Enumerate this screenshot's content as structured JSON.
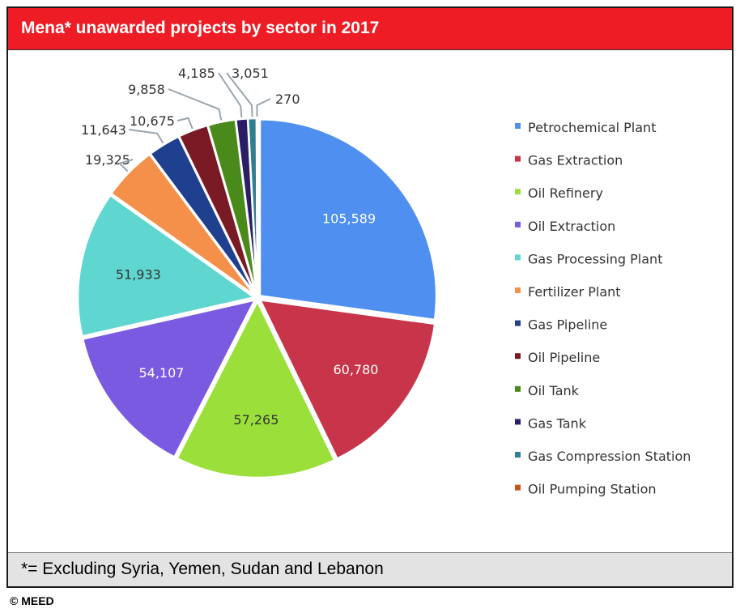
{
  "title": "Mena* unawarded projects by sector in 2017",
  "footnote": "*= Excluding Syria, Yemen, Sudan and Lebanon",
  "credit": "© MEED",
  "chart_data": {
    "type": "pie",
    "title": "Mena* unawarded projects by sector in 2017",
    "legend_position": "right",
    "slices": [
      {
        "label": "Petrochemical Plant",
        "value": 105589,
        "display": "105,589",
        "color": "#4e8ff0"
      },
      {
        "label": "Gas Extraction",
        "value": 60780,
        "display": "60,780",
        "color": "#c8354a"
      },
      {
        "label": "Oil Refinery",
        "value": 57265,
        "display": "57,265",
        "color": "#9be03a"
      },
      {
        "label": "Oil Extraction",
        "value": 54107,
        "display": "54,107",
        "color": "#7a5ae0"
      },
      {
        "label": "Gas Processing Plant",
        "value": 51933,
        "display": "51,933",
        "color": "#5fd6cf"
      },
      {
        "label": "Fertilizer Plant",
        "value": 19325,
        "display": "19,325",
        "color": "#f5904a"
      },
      {
        "label": "Gas Pipeline",
        "value": 11643,
        "display": "11,643",
        "color": "#1f3f8f"
      },
      {
        "label": "Oil Pipeline",
        "value": 10675,
        "display": "10,675",
        "color": "#7a1a24"
      },
      {
        "label": "Oil Tank",
        "value": 9858,
        "display": "9,858",
        "color": "#4a8a1a"
      },
      {
        "label": "Gas Tank",
        "value": 4185,
        "display": "4,185",
        "color": "#2a1f66"
      },
      {
        "label": "Gas Compression Station",
        "value": 3051,
        "display": "3,051",
        "color": "#2e7f8f"
      },
      {
        "label": "Oil Pumping Station",
        "value": 270,
        "display": "270",
        "color": "#c8541a"
      }
    ]
  }
}
